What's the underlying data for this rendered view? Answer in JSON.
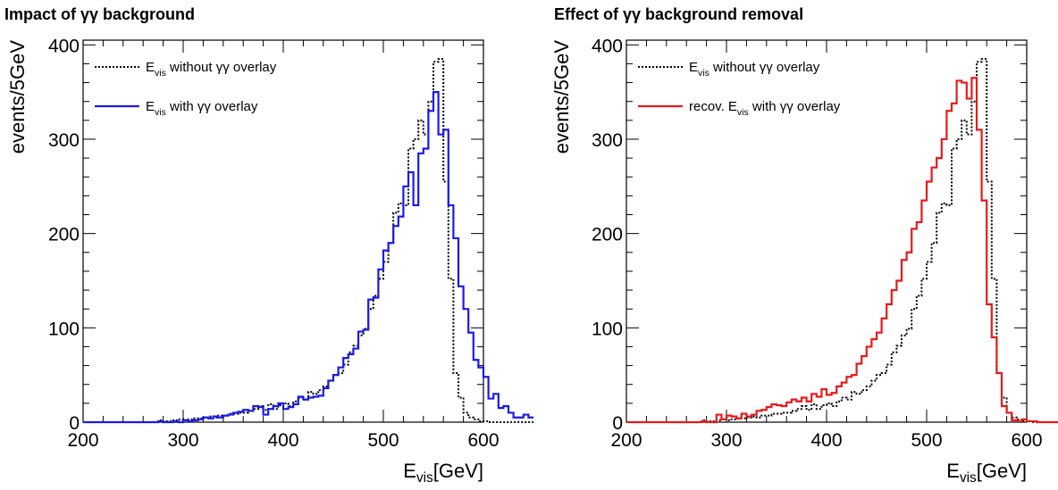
{
  "chart_data": [
    {
      "type": "line",
      "title": "Impact of γγ background",
      "xlabel": {
        "main": "E",
        "sub": "vis",
        "rest": "[GeV]"
      },
      "ylabel": "events/5GeV",
      "xlim": [
        200,
        600
      ],
      "ylim": [
        0,
        405
      ],
      "x_ticks": [
        200,
        300,
        400,
        500,
        600
      ],
      "y_ticks": [
        0,
        100,
        200,
        300,
        400
      ],
      "bin_width": 5,
      "legend_position": "top-left",
      "series": [
        {
          "legend": {
            "main": "E",
            "sub": "vis",
            "rest": " without γγ overlay"
          },
          "style": "dotted",
          "color": "#000000",
          "values": [
            0,
            0,
            0,
            0,
            0,
            0,
            0,
            0,
            0,
            0,
            0,
            0,
            0,
            0,
            0,
            2,
            1,
            1,
            2,
            3,
            2,
            3,
            4,
            4,
            5,
            6,
            5,
            7,
            7,
            9,
            9,
            10,
            10,
            12,
            14,
            17,
            13,
            19,
            14,
            18,
            20,
            17,
            22,
            26,
            24,
            32,
            30,
            34,
            38,
            44,
            50,
            52,
            61,
            74,
            81,
            92,
            99,
            120,
            134,
            152,
            170,
            190,
            222,
            232,
            230,
            290,
            300,
            320,
            305,
            340,
            382,
            385,
            255,
            152,
            52,
            26,
            10,
            5,
            3,
            1,
            1,
            0,
            0,
            0,
            0,
            0,
            0,
            0,
            0,
            0
          ]
        },
        {
          "legend": {
            "main": "E",
            "sub": "vis",
            "rest": " with γγ overlay"
          },
          "style": "solid",
          "color": "#1a1ae6",
          "values": [
            0,
            0,
            0,
            0,
            0,
            0,
            0,
            0,
            0,
            0,
            0,
            0,
            0,
            0,
            0,
            1,
            0,
            0,
            1,
            0,
            2,
            1,
            2,
            3,
            5,
            4,
            6,
            5,
            7,
            8,
            10,
            11,
            13,
            12,
            17,
            16,
            8,
            14,
            17,
            20,
            14,
            16,
            19,
            27,
            24,
            26,
            27,
            28,
            36,
            44,
            50,
            58,
            68,
            72,
            78,
            96,
            98,
            130,
            132,
            162,
            182,
            190,
            208,
            218,
            250,
            265,
            230,
            285,
            290,
            330,
            350,
            305,
            310,
            230,
            195,
            144,
            120,
            95,
            66,
            58,
            48,
            25,
            30,
            15,
            17,
            10,
            5,
            5,
            8,
            5
          ]
        }
      ]
    },
    {
      "type": "line",
      "title": "Effect of γγ background removal",
      "xlabel": {
        "main": "E",
        "sub": "vis",
        "rest": "[GeV]"
      },
      "ylabel": "events/5GeV",
      "xlim": [
        200,
        600
      ],
      "ylim": [
        0,
        405
      ],
      "x_ticks": [
        200,
        300,
        400,
        500,
        600
      ],
      "y_ticks": [
        0,
        100,
        200,
        300,
        400
      ],
      "bin_width": 5,
      "legend_position": "top-left",
      "series": [
        {
          "legend": {
            "main": "E",
            "sub": "vis",
            "rest": " without γγ overlay"
          },
          "style": "dotted",
          "color": "#000000",
          "values": [
            0,
            0,
            0,
            0,
            0,
            0,
            0,
            0,
            0,
            0,
            0,
            0,
            0,
            0,
            0,
            2,
            1,
            1,
            2,
            3,
            2,
            3,
            4,
            4,
            5,
            6,
            5,
            7,
            7,
            9,
            9,
            10,
            10,
            12,
            14,
            17,
            13,
            19,
            14,
            18,
            20,
            17,
            22,
            26,
            24,
            32,
            30,
            34,
            38,
            44,
            50,
            52,
            61,
            74,
            81,
            92,
            99,
            120,
            134,
            152,
            170,
            190,
            222,
            232,
            230,
            290,
            300,
            320,
            305,
            340,
            382,
            385,
            255,
            152,
            52,
            26,
            10,
            5,
            3,
            1,
            1,
            0,
            0,
            0,
            0,
            0,
            0,
            0,
            0,
            0
          ]
        },
        {
          "legend": {
            "main": "recov. E",
            "sub": "vis",
            "rest": " with γγ overlay"
          },
          "style": "solid",
          "color": "#e61a1a",
          "values": [
            0,
            0,
            0,
            0,
            0,
            0,
            0,
            0,
            0,
            0,
            0,
            0,
            0,
            0,
            0,
            1,
            0,
            0,
            8,
            3,
            7,
            6,
            4,
            9,
            6,
            8,
            12,
            13,
            16,
            19,
            18,
            17,
            21,
            24,
            22,
            26,
            22,
            30,
            27,
            35,
            29,
            31,
            38,
            42,
            48,
            50,
            62,
            70,
            80,
            88,
            95,
            110,
            125,
            140,
            150,
            172,
            180,
            205,
            212,
            235,
            255,
            270,
            280,
            300,
            330,
            338,
            362,
            360,
            343,
            365,
            310,
            235,
            125,
            90,
            52,
            17,
            10,
            2,
            1,
            3,
            1,
            1,
            0,
            0,
            0,
            0,
            0,
            0,
            0,
            0
          ]
        }
      ]
    }
  ]
}
